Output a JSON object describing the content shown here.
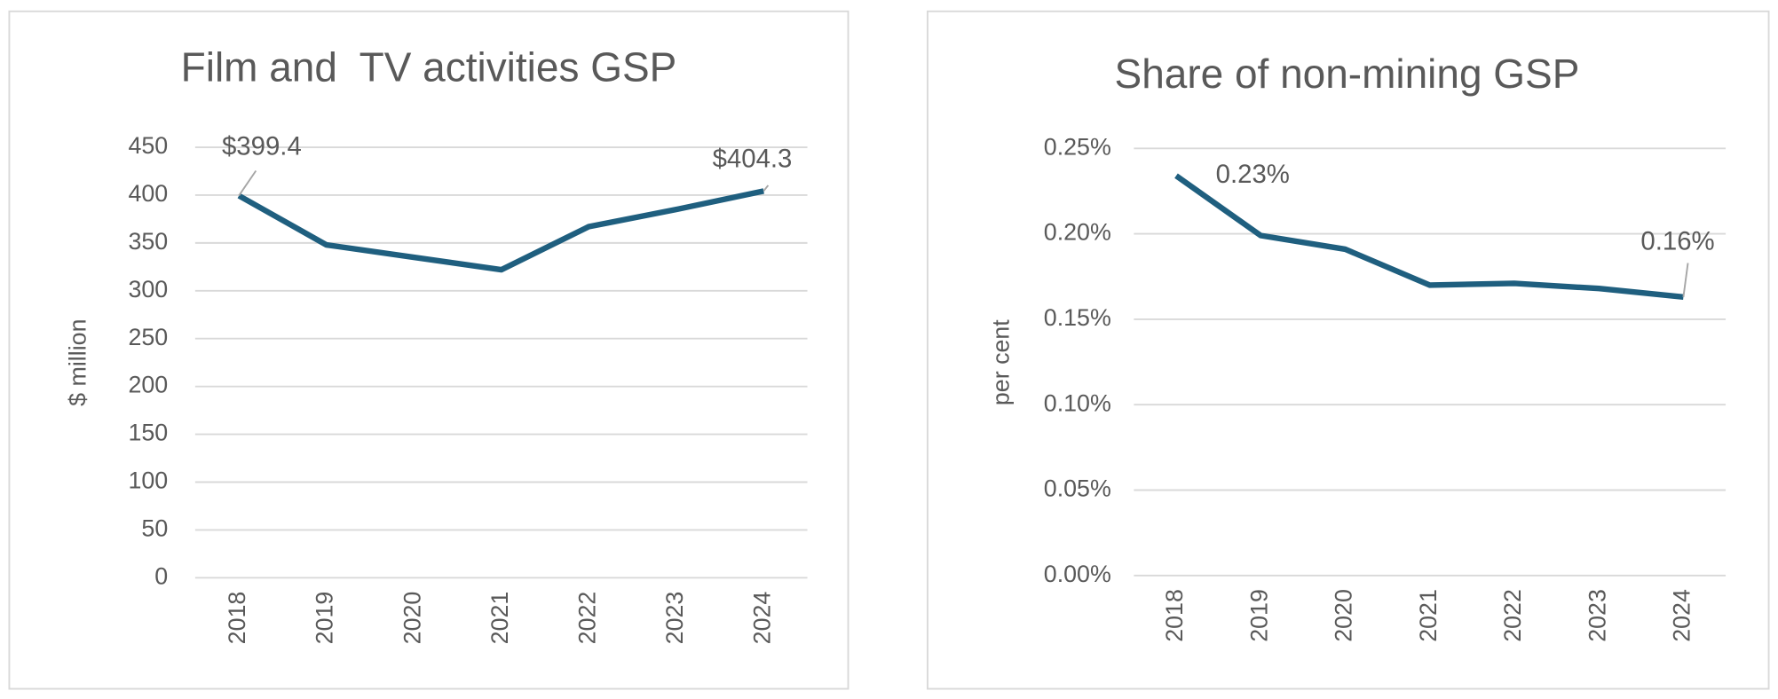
{
  "chart_data": [
    {
      "type": "line",
      "title": "Film and  TV activities GSP",
      "y_label": "$ million",
      "categories": [
        "2018",
        "2019",
        "2020",
        "2021",
        "2022",
        "2023",
        "2024"
      ],
      "values": [
        399.4,
        348,
        335,
        322,
        367,
        385,
        404.3
      ],
      "value_labels": [
        "$399.4",
        null,
        null,
        null,
        null,
        null,
        "$404.3"
      ],
      "color": "#1f5f7f",
      "ylim": [
        0,
        450
      ],
      "yticks": [
        0,
        50,
        100,
        150,
        200,
        250,
        300,
        350,
        400,
        450
      ],
      "grid": true
    },
    {
      "type": "line",
      "title": "Share of non-mining GSP",
      "y_label": "per cent",
      "categories": [
        "2018",
        "2019",
        "2020",
        "2021",
        "2022",
        "2023",
        "2024"
      ],
      "values": [
        0.234,
        0.199,
        0.191,
        0.17,
        0.171,
        0.168,
        0.163
      ],
      "value_labels": [
        "0.23%",
        null,
        null,
        null,
        null,
        null,
        "0.16%"
      ],
      "color": "#1f5f7f",
      "ylim": [
        0,
        0.25
      ],
      "yticks": [
        {
          "value": 0,
          "label": "0.00%"
        },
        {
          "value": 0.05,
          "label": "0.05%"
        },
        {
          "value": 0.1,
          "label": "0.10%"
        },
        {
          "value": 0.15,
          "label": "0.15%"
        },
        {
          "value": 0.2,
          "label": "0.20%"
        },
        {
          "value": 0.25,
          "label": "0.25%"
        }
      ],
      "grid": true
    }
  ]
}
